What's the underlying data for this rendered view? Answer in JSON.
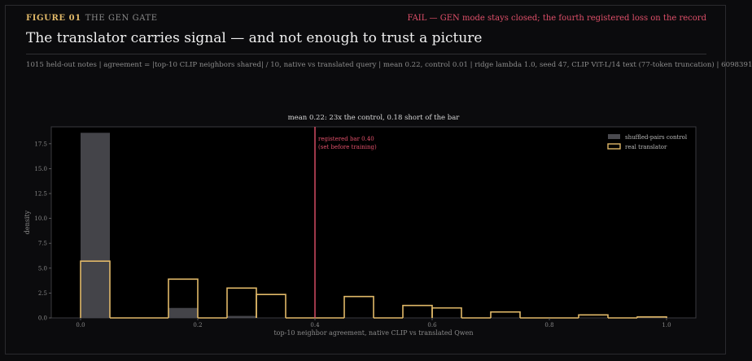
{
  "header": {
    "figure_number": "FIGURE 01",
    "figure_name": "THE GEN GATE",
    "status": "FAIL — GEN mode stays closed; the fourth registered loss on the record",
    "headline": "The translator carries signal — and not enough to trust a picture",
    "caption": "1015 held-out notes | agreement = |top-10 CLIP neighbors shared| / 10, native vs translated query | mean 0.22, control 0.01 | ridge lambda 1.0, seed 47, CLIP ViT-L/14 text (77-token truncation) | 6098391"
  },
  "colors": {
    "accent": "#e0b868",
    "fail": "#e0506a",
    "control_fill": "#4a4a4f",
    "background": "#0b0b0d"
  },
  "chart_data": {
    "type": "histogram",
    "title": "mean 0.22: 23x the control, 0.18 short of the bar",
    "xlabel": "top-10 neighbor agreement, native CLIP vs translated Qwen",
    "ylabel": "density",
    "xlim": [
      -0.05,
      1.05
    ],
    "ylim": [
      0,
      19.2
    ],
    "xticks": [
      0.0,
      0.2,
      0.4,
      0.6,
      0.8,
      1.0
    ],
    "xtick_labels": [
      "0.0",
      "0.2",
      "0.4",
      "0.6",
      "0.8",
      "1.0"
    ],
    "yticks": [
      0,
      2.5,
      5,
      7.5,
      10,
      12.5,
      15,
      17.5
    ],
    "ytick_labels": [
      "0.0",
      "2.5",
      "5.0",
      "7.5",
      "10.0",
      "12.5",
      "15.0",
      "17.5"
    ],
    "bin_edges": [
      0.0,
      0.05,
      0.1,
      0.15,
      0.2,
      0.25,
      0.3,
      0.35,
      0.4,
      0.45,
      0.5,
      0.55,
      0.6,
      0.65,
      0.7,
      0.75,
      0.8,
      0.85,
      0.9,
      0.95,
      1.0
    ],
    "series": [
      {
        "name": "shuffled-pairs control",
        "style": "filled",
        "values": [
          18.6,
          0,
          0,
          1.0,
          0,
          0.2,
          0,
          0,
          0,
          0,
          0,
          0,
          0,
          0,
          0,
          0,
          0,
          0,
          0,
          0
        ]
      },
      {
        "name": "real translator",
        "style": "outline",
        "values": [
          5.7,
          0,
          0,
          3.9,
          0,
          3.0,
          2.35,
          0,
          0,
          2.15,
          0,
          1.25,
          1.0,
          0,
          0.6,
          0,
          0,
          0.3,
          0,
          0.1
        ]
      }
    ],
    "threshold": {
      "x": 0.4,
      "label_line1": "registered bar 0.40",
      "label_line2": "(set before training)"
    },
    "legend_position": "top-right",
    "grid": false
  }
}
